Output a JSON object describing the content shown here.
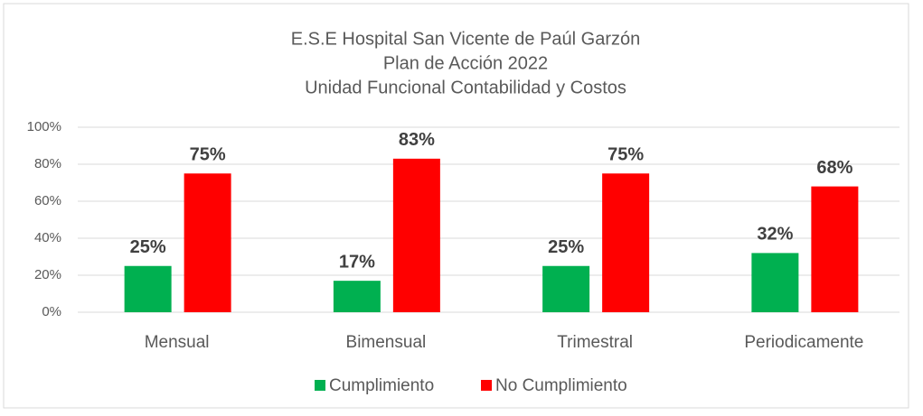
{
  "chart_data": {
    "type": "bar",
    "title": [
      "E.S.E Hospital San Vicente de Paúl Garzón",
      "Plan de Acción 2022",
      "Unidad Funcional Contabilidad  y Costos"
    ],
    "categories": [
      "Mensual",
      "Bimensual",
      "Trimestral",
      "Periodicamente"
    ],
    "series": [
      {
        "name": "Cumplimiento",
        "color": "#00b050",
        "values": [
          25,
          17,
          25,
          32
        ],
        "value_labels": [
          "25%",
          "17%",
          "25%",
          "32%"
        ]
      },
      {
        "name": "No Cumplimiento",
        "color": "#ff0000",
        "values": [
          75,
          83,
          75,
          68
        ],
        "value_labels": [
          "75%",
          "83%",
          "75%",
          "68%"
        ]
      }
    ],
    "ylim": [
      0,
      100
    ],
    "yticks": [
      {
        "value": 0,
        "label": "0%"
      },
      {
        "value": 20,
        "label": "20%"
      },
      {
        "value": 40,
        "label": "40%"
      },
      {
        "value": 60,
        "label": "60%"
      },
      {
        "value": 80,
        "label": "80%"
      },
      {
        "value": 100,
        "label": "100%"
      }
    ],
    "grid": true,
    "legend": "bottom"
  }
}
